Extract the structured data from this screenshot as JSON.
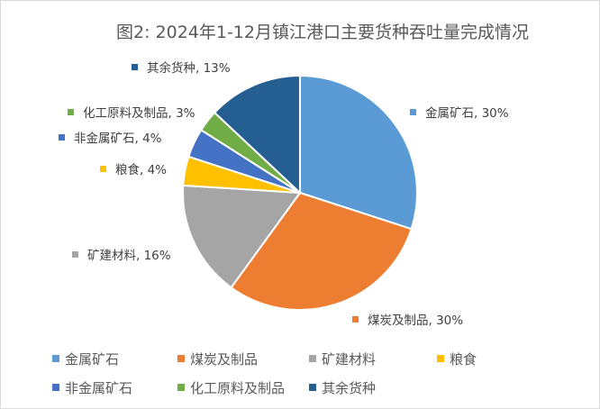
{
  "chart_data": {
    "type": "pie",
    "title": "图2: 2024年1-12月镇江港口主要货种吞吐量完成情况",
    "categories": [
      "金属矿石",
      "煤炭及制品",
      "矿建材料",
      "粮食",
      "非金属矿石",
      "化工原料及制品",
      "其余货种"
    ],
    "values": [
      30,
      30,
      16,
      4,
      4,
      3,
      13
    ],
    "unit": "%",
    "data_labels": [
      "金属矿石, 30%",
      "煤炭及制品, 30%",
      "矿建材料, 16%",
      "粮食, 4%",
      "非金属矿石, 4%",
      "化工原料及制品, 3%",
      "其余货种, 13%"
    ],
    "colors": [
      "#5b9bd5",
      "#ed7d31",
      "#a5a5a5",
      "#ffc000",
      "#4472c4",
      "#70ad47",
      "#255e91"
    ],
    "legend_position": "bottom"
  }
}
